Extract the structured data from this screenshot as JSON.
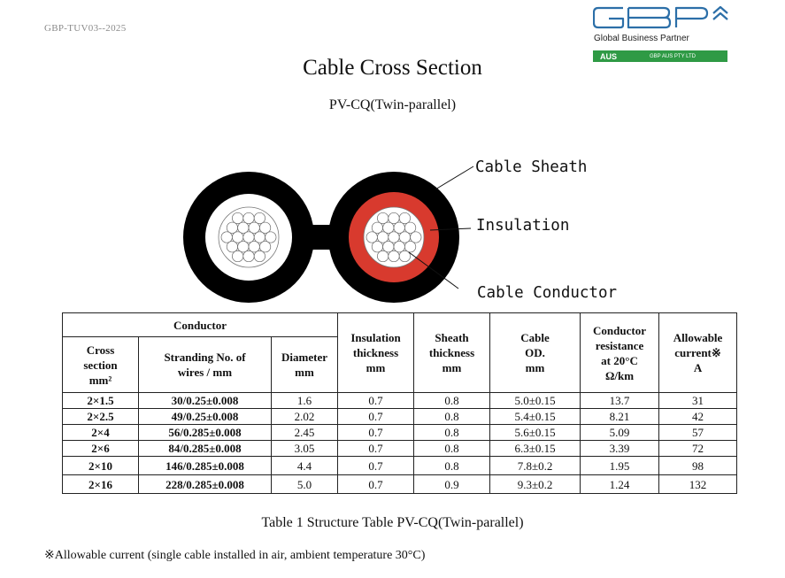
{
  "header": {
    "doc_code": "GBP-TUV03--2025"
  },
  "logo": {
    "subtitle": "Global Business Partner",
    "badge": "AUS",
    "company": "GBP AUS PTY LTD",
    "colors": {
      "blue": "#2c6fa8",
      "green": "#2f9a45"
    }
  },
  "title": "Cable Cross Section",
  "subtitle": "PV-CQ(Twin-parallel)",
  "diagram": {
    "labels": {
      "sheath": "Cable Sheath",
      "insulation": "Insulation",
      "conductor": "Cable Conductor"
    },
    "colors": {
      "sheath": "#000000",
      "left_insulation": "#ffffff",
      "right_insulation": "#d83a2e",
      "conductor": "#ffffff"
    }
  },
  "table": {
    "group_header": "Conductor",
    "columns": [
      "Cross section mm²",
      "Stranding No. of wires / mm",
      "Diameter mm",
      "Insulation thickness mm",
      "Sheath thickness mm",
      "Cable OD. mm",
      "Conductor resistance at 20°C Ω/km",
      "Allowable current※ A"
    ],
    "rows": [
      [
        "2×1.5",
        "30/0.25±0.008",
        "1.6",
        "0.7",
        "0.8",
        "5.0±0.15",
        "13.7",
        "31"
      ],
      [
        "2×2.5",
        "49/0.25±0.008",
        "2.02",
        "0.7",
        "0.8",
        "5.4±0.15",
        "8.21",
        "42"
      ],
      [
        "2×4",
        "56/0.285±0.008",
        "2.45",
        "0.7",
        "0.8",
        "5.6±0.15",
        "5.09",
        "57"
      ],
      [
        "2×6",
        "84/0.285±0.008",
        "3.05",
        "0.7",
        "0.8",
        "6.3±0.15",
        "3.39",
        "72"
      ],
      [
        "2×10",
        "146/0.285±0.008",
        "4.4",
        "0.7",
        "0.8",
        "7.8±0.2",
        "1.95",
        "98"
      ],
      [
        "2×16",
        "228/0.285±0.008",
        "5.0",
        "0.7",
        "0.9",
        "9.3±0.2",
        "1.24",
        "132"
      ]
    ]
  },
  "caption": "Table 1 Structure Table PV-CQ(Twin-parallel)",
  "footnote": "※Allowable current (single cable installed in air, ambient temperature 30°C)"
}
